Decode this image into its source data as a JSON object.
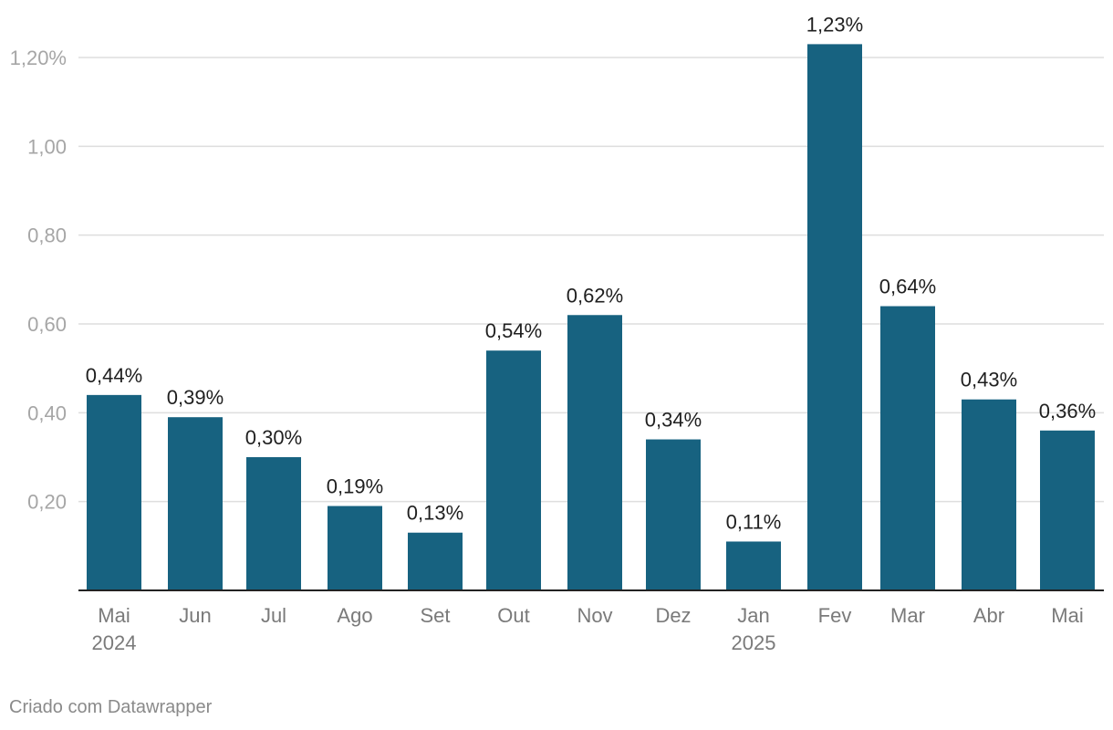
{
  "chart_data": {
    "type": "bar",
    "categories": [
      [
        "Mai",
        "2024"
      ],
      [
        "Jun"
      ],
      [
        "Jul"
      ],
      [
        "Ago"
      ],
      [
        "Set"
      ],
      [
        "Out"
      ],
      [
        "Nov"
      ],
      [
        "Dez"
      ],
      [
        "Jan",
        "2025"
      ],
      [
        "Fev"
      ],
      [
        "Mar"
      ],
      [
        "Abr"
      ],
      [
        "Mai"
      ]
    ],
    "values": [
      0.44,
      0.39,
      0.3,
      0.19,
      0.13,
      0.54,
      0.62,
      0.34,
      0.11,
      1.23,
      0.64,
      0.43,
      0.36
    ],
    "value_labels": [
      "0,44%",
      "0,39%",
      "0,30%",
      "0,19%",
      "0,13%",
      "0,54%",
      "0,62%",
      "0,34%",
      "0,11%",
      "1,23%",
      "0,64%",
      "0,43%",
      "0,36%"
    ],
    "y_ticks": [
      0.2,
      0.4,
      0.6,
      0.8,
      1.0,
      1.2
    ],
    "y_tick_labels": [
      "0,20",
      "0,40",
      "0,60",
      "0,80",
      "1,00",
      "1,20%"
    ],
    "ylim": [
      0,
      1.2
    ],
    "bar_color": "#176280",
    "grid": true,
    "title": "",
    "xlabel": "",
    "ylabel": ""
  },
  "footer": {
    "credit": "Criado com Datawrapper"
  }
}
